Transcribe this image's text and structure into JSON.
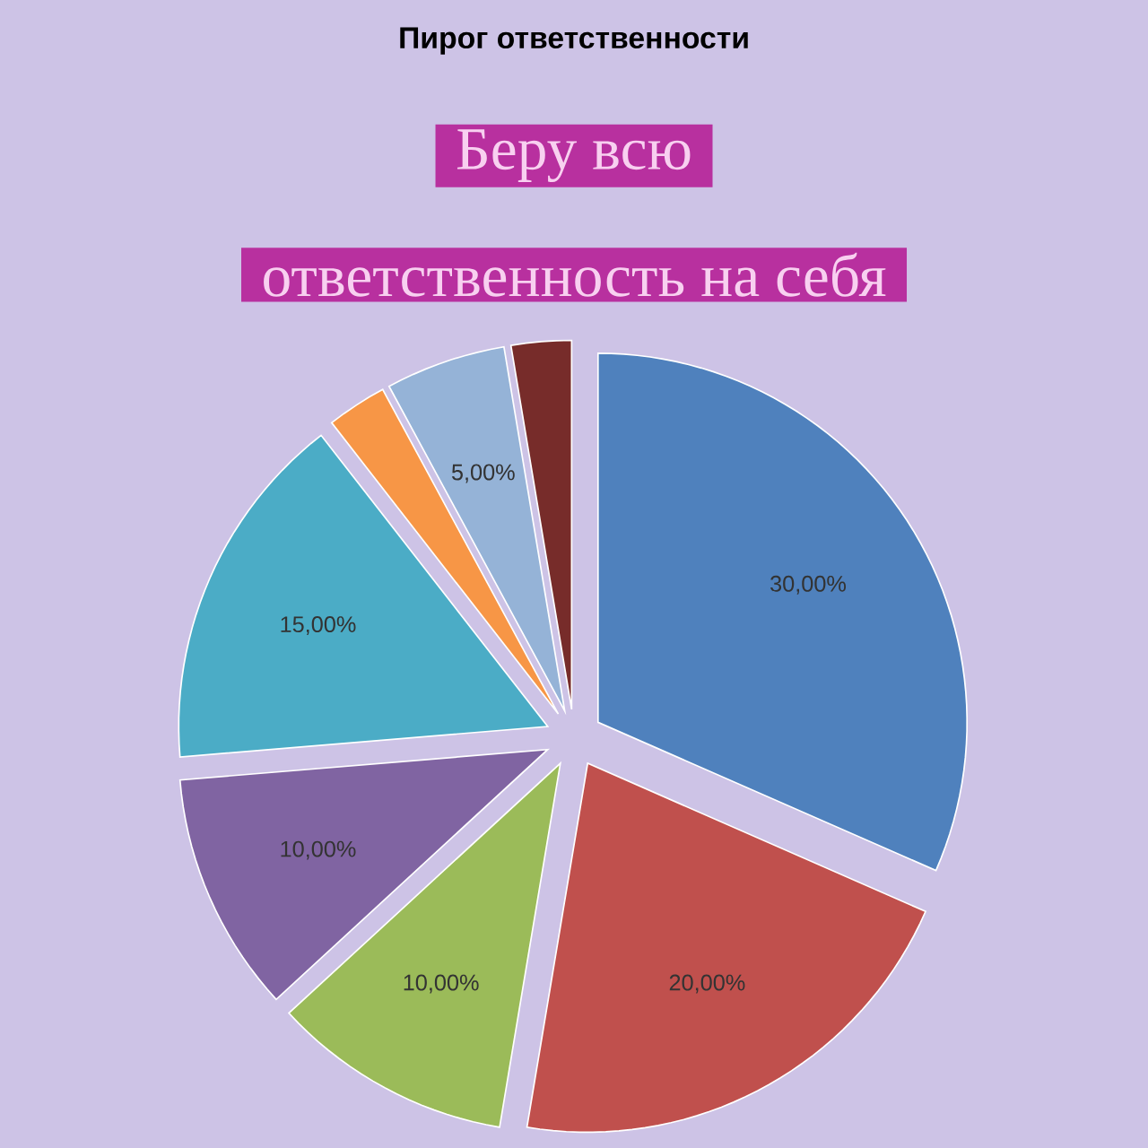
{
  "chart_data": {
    "type": "pie",
    "title": "Пирог ответственности",
    "categories": [
      null,
      null,
      null,
      null,
      null,
      null,
      null,
      null
    ],
    "values": [
      30,
      20,
      10,
      10,
      15,
      2.5,
      5,
      2.5
    ],
    "colors": [
      "#4f81bd",
      "#c0504d",
      "#9bbb59",
      "#8064a2",
      "#4bacc6",
      "#f79646",
      "#95b3d7",
      "#772c2a"
    ],
    "value_labels": [
      "30,00%",
      "20,00%",
      "10,00%",
      "10,00%",
      "15,00%",
      null,
      "5,00%",
      null
    ],
    "annotations": [
      "Беру всю",
      "ответственность на себя"
    ]
  }
}
